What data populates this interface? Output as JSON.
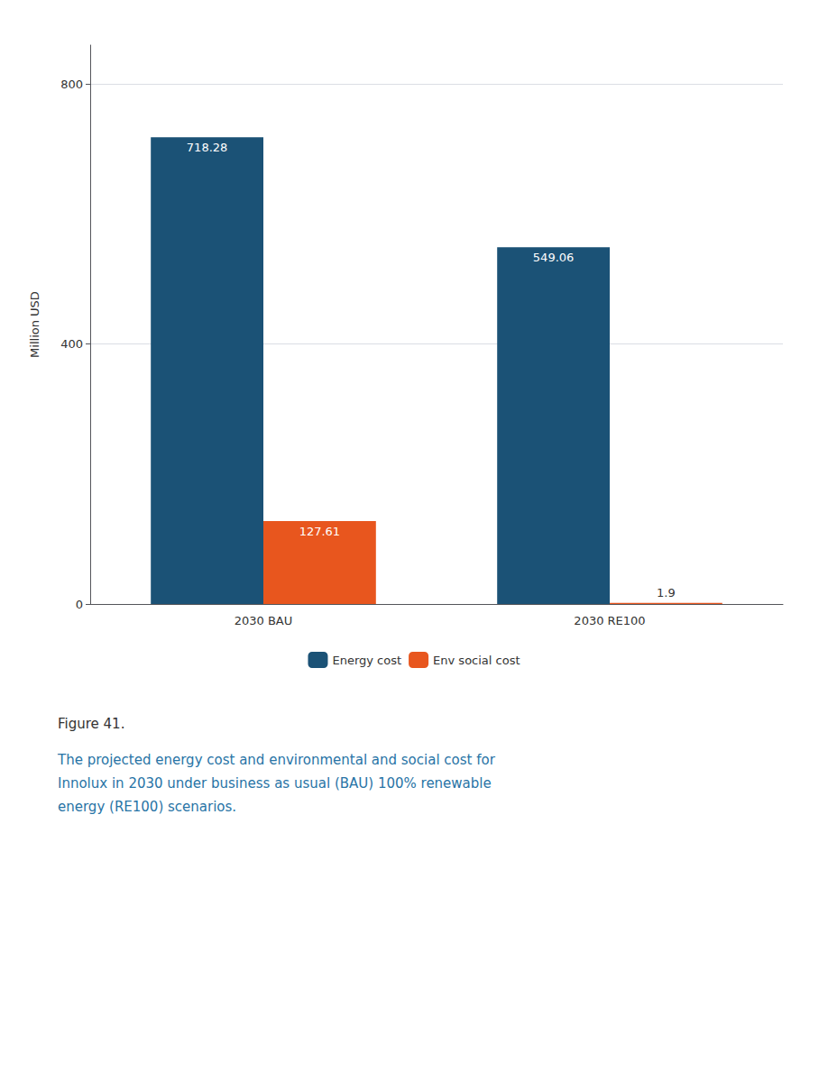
{
  "chart_data": {
    "type": "bar",
    "categories": [
      "2030 BAU",
      "2030 RE100"
    ],
    "series": [
      {
        "name": "Energy cost",
        "color": "#1b5276",
        "values": [
          718.28,
          549.06
        ]
      },
      {
        "name": "Env social cost",
        "color": "#e8561e",
        "values": [
          127.61,
          1.9
        ]
      }
    ],
    "ylabel": "Million USD",
    "ylim": [
      0,
      860
    ],
    "yticks": [
      0,
      400,
      800
    ],
    "grid": true,
    "legend": "bottom",
    "data_labels": true,
    "annotations": [
      "Figure 41.",
      "The projected energy cost and environmental and social cost for\nInnolux in 2030 under business as usual (BAU) 100% renewable\nenergy (RE100) scenarios."
    ]
  }
}
